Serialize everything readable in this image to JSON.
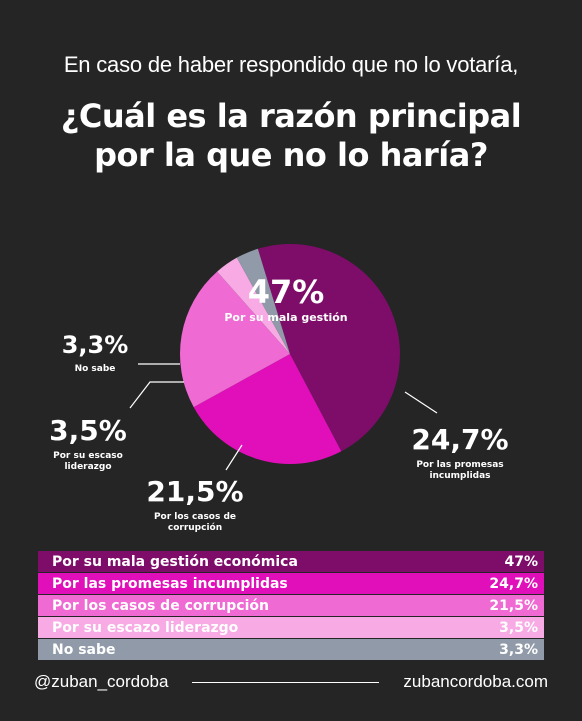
{
  "header": {
    "subtitle": "En caso de haber respondido que no lo votaría,",
    "title_line1": "¿Cuál es la razón principal",
    "title_line2": "por la que no lo haría?"
  },
  "chart_data": {
    "type": "pie",
    "slices": [
      {
        "label": "Por su mala gestión",
        "legend": "Por su mala gestión económica",
        "value": 47,
        "display": "47%",
        "color": "#7e0d6a"
      },
      {
        "label": "Por las promesas incumplidas",
        "legend": "Por las promesas incumplidas",
        "value": 24.7,
        "display": "24,7%",
        "color": "#e10fba"
      },
      {
        "label": "Por los casos de corrupción",
        "legend": "Por los casos de corrupción",
        "value": 21.5,
        "display": "21,5%",
        "color": "#ef6ad2"
      },
      {
        "label": "Por su escaso liderazgo",
        "legend": "Por su escazo liderazgo",
        "value": 3.5,
        "display": "3,5%",
        "color": "#f7aae4"
      },
      {
        "label": "No sabe",
        "legend": "No sabe",
        "value": 3.3,
        "display": "3,3%",
        "color": "#909aa8"
      }
    ]
  },
  "chart_labels": [
    {
      "pct": "47%",
      "desc": [
        "Por su mala gestión"
      ]
    },
    {
      "pct": "24,7%",
      "desc": [
        "Por las promesas",
        "incumplidas"
      ]
    },
    {
      "pct": "21,5%",
      "desc": [
        "Por los casos de",
        "corrupción"
      ]
    },
    {
      "pct": "3,5%",
      "desc": [
        "Por su escaso",
        "liderazgo"
      ]
    },
    {
      "pct": "3,3%",
      "desc": [
        "No sabe"
      ]
    }
  ],
  "footer": {
    "handle": "@zuban_cordoba",
    "website": "zubancordoba.com"
  }
}
